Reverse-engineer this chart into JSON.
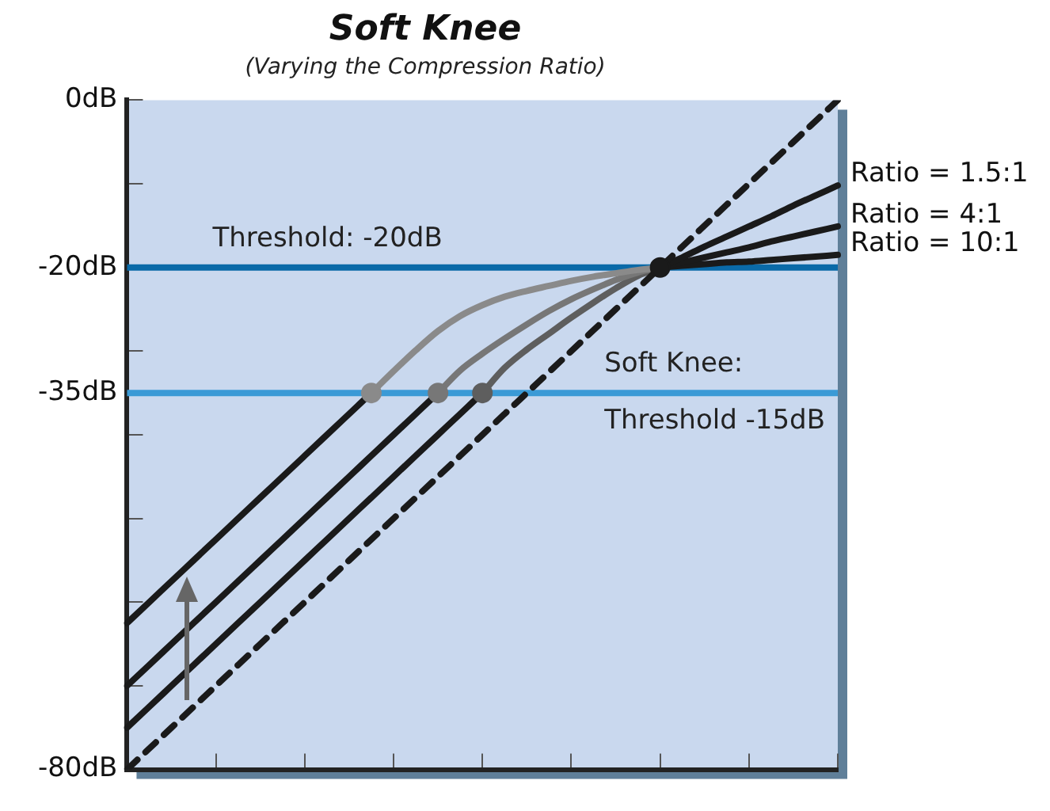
{
  "chart_data": {
    "type": "line",
    "title": "Soft Knee",
    "subtitle": "(Varying the Compression Ratio)",
    "categories": [
      null,
      null,
      null,
      null,
      null,
      null,
      null,
      null,
      null,
      null,
      null,
      null,
      null,
      null,
      null,
      null,
      null,
      null,
      null,
      null,
      null,
      null,
      null,
      null,
      null,
      null,
      null,
      null,
      null,
      null,
      null,
      null,
      null
    ],
    "ylim": [
      -80,
      0
    ],
    "yticks": [
      {
        "value": -80,
        "label": "-80dB"
      },
      {
        "value": -70,
        "label": null
      },
      {
        "value": -60,
        "label": null
      },
      {
        "value": -50,
        "label": null
      },
      {
        "value": -40,
        "label": null
      },
      {
        "value": -35,
        "label": "-35dB"
      },
      {
        "value": -30,
        "label": null
      },
      {
        "value": -20,
        "label": "-20dB"
      },
      {
        "value": -10,
        "label": null
      },
      {
        "value": 0,
        "label": "0dB"
      }
    ],
    "tick_labels": "y",
    "series": [
      {
        "line_style": "dashed",
        "color": "#1a1a1a",
        "values": [
          -80,
          -77.5,
          -75,
          -72.5,
          -70,
          -67.5,
          -65,
          -62.5,
          -60,
          -57.5,
          -55,
          -52.5,
          -50,
          -47.5,
          -45,
          -42.5,
          -40,
          -37.5,
          -35,
          -32.5,
          -30,
          -27.5,
          -25,
          -22.5,
          -20,
          -17.5,
          -15,
          -12.5,
          -10,
          -7.5,
          -5,
          -2.5,
          0
        ]
      },
      {
        "name": "Ratio = 1.5:1",
        "color": "#1a1a1a",
        "values": [
          -62.5,
          -60,
          -57.5,
          -55,
          -52.5,
          -50,
          -47.5,
          -45,
          -42.5,
          -40,
          -37.5,
          -35,
          null,
          null,
          null,
          null,
          null,
          null,
          null,
          null,
          null,
          null,
          null,
          null,
          -20,
          -18.8,
          -17.5,
          -16.3,
          -15.1,
          -13.9,
          -12.6,
          -11.4,
          -10.2
        ]
      },
      {
        "name": "Ratio = 4:1",
        "color": "#1a1a1a",
        "values": [
          -70,
          -67.5,
          -65,
          -62.5,
          -60,
          -57.5,
          -55,
          -52.5,
          -50,
          -47.5,
          -45,
          -42.5,
          -40,
          -37.5,
          -35,
          null,
          null,
          null,
          null,
          null,
          null,
          null,
          null,
          null,
          -20,
          -19.4,
          -18.8,
          -18.2,
          -17.6,
          -16.9,
          -16.3,
          -15.7,
          -15.1
        ]
      },
      {
        "name": "Ratio = 10:1",
        "color": "#1a1a1a",
        "values": [
          -75,
          -72.5,
          -70,
          -67.5,
          -65,
          -62.5,
          -60,
          -57.5,
          -55,
          -52.5,
          -50,
          -47.5,
          -45,
          -42.5,
          -40,
          -37.5,
          -35,
          null,
          null,
          null,
          null,
          null,
          null,
          null,
          -20,
          -19.8,
          -19.6,
          -19.4,
          -19.3,
          -19.1,
          -18.9,
          -18.7,
          -18.5
        ]
      },
      {
        "color": "#8a8a8a",
        "values": [
          null,
          null,
          null,
          null,
          null,
          null,
          null,
          null,
          null,
          null,
          null,
          -35,
          -32.4,
          -29.9,
          -27.6,
          -25.8,
          -24.5,
          -23.5,
          -22.8,
          -22.2,
          -21.6,
          -21.1,
          -20.7,
          -20.3,
          -20,
          null,
          null,
          null,
          null,
          null,
          null,
          null,
          null
        ]
      },
      {
        "color": "#777777",
        "values": [
          null,
          null,
          null,
          null,
          null,
          null,
          null,
          null,
          null,
          null,
          null,
          null,
          null,
          null,
          -35,
          -32.3,
          -30.3,
          -28.5,
          -26.8,
          -25.2,
          -23.8,
          -22.6,
          -21.5,
          -20.6,
          -20,
          null,
          null,
          null,
          null,
          null,
          null,
          null,
          null
        ]
      },
      {
        "color": "#5e5e5e",
        "values": [
          null,
          null,
          null,
          null,
          null,
          null,
          null,
          null,
          null,
          null,
          null,
          null,
          null,
          null,
          null,
          null,
          -35,
          -32,
          -29.8,
          -27.9,
          -26,
          -24.2,
          -22.5,
          -21,
          -20,
          null,
          null,
          null,
          null,
          null,
          null,
          null,
          null
        ]
      },
      {
        "type": "scatter",
        "marker": "circle",
        "values": [
          null,
          null,
          null,
          null,
          null,
          null,
          null,
          null,
          null,
          null,
          null,
          -35,
          null,
          null,
          -35,
          null,
          -35,
          null,
          null,
          null,
          null,
          null,
          null,
          null,
          -20,
          null,
          null,
          null,
          null,
          null,
          null,
          null,
          null
        ],
        "colors": [
          null,
          null,
          null,
          null,
          null,
          null,
          null,
          null,
          null,
          null,
          null,
          "#8a8a8a",
          null,
          null,
          "#777777",
          null,
          "#5e5e5e",
          null,
          null,
          null,
          null,
          null,
          null,
          null,
          "#1a1a1a",
          null,
          null,
          null,
          null,
          null,
          null,
          null,
          null
        ]
      }
    ],
    "ref_lines": [
      {
        "axis": "y",
        "value": -20,
        "label": "Threshold: -20dB",
        "color": "#0a6aa8"
      },
      {
        "axis": "y",
        "value": -35,
        "label": "Soft Knee:\nThreshold -15dB",
        "color": "#3a9ad6"
      }
    ]
  }
}
